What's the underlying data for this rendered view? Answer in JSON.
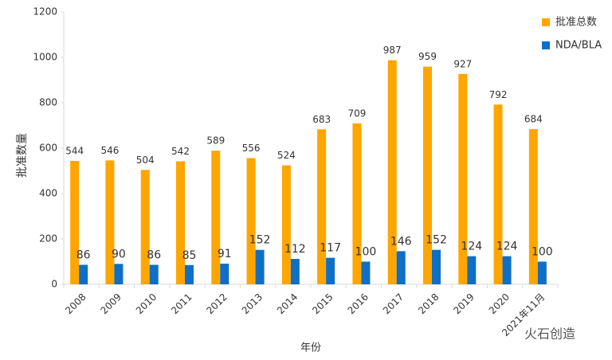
{
  "chart_data": {
    "type": "bar",
    "categories": [
      "2008",
      "2009",
      "2010",
      "2011",
      "2012",
      "2013",
      "2014",
      "2015",
      "2016",
      "2017",
      "2018",
      "2019",
      "2020",
      "2021年11月"
    ],
    "series": [
      {
        "name": "批准总数",
        "color": "#ffa500",
        "values": [
          544,
          546,
          504,
          542,
          589,
          556,
          524,
          683,
          709,
          987,
          959,
          927,
          792,
          684
        ]
      },
      {
        "name": "NDA/BLA",
        "color": "#0f6fc6",
        "values": [
          86,
          90,
          86,
          85,
          91,
          152,
          112,
          117,
          100,
          146,
          152,
          124,
          124,
          100
        ]
      }
    ],
    "ylim": [
      0,
      1200
    ],
    "yticks": [
      0,
      200,
      400,
      600,
      800,
      1000,
      1200
    ],
    "y_label": "批准数量",
    "x_label": "年份",
    "legend": "top-right",
    "watermark": "火石创造"
  }
}
